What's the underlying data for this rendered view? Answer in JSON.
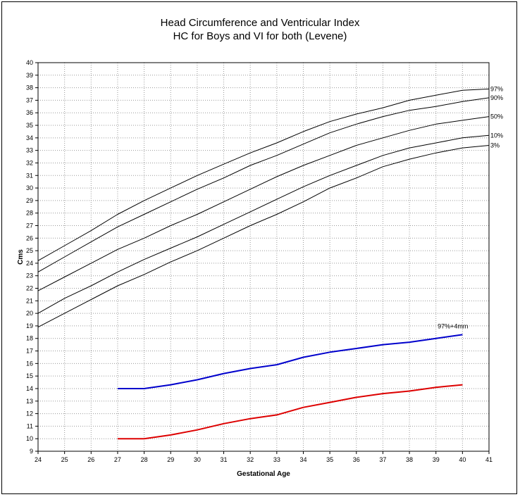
{
  "chart_data": {
    "type": "line",
    "title": "Head Circumference and Ventricular Index",
    "subtitle": "HC for Boys and VI for both (Levene)",
    "xlabel": "Gestational Age",
    "ylabel": "Cms",
    "xlim": [
      24,
      41
    ],
    "ylim": [
      9,
      40
    ],
    "x_ticks": [
      "24",
      "25",
      "26",
      "27",
      "28",
      "29",
      "30",
      "31",
      "32",
      "33",
      "34",
      "35",
      "36",
      "37",
      "38",
      "39",
      "40",
      "41"
    ],
    "y_ticks": [
      "9",
      "10",
      "11",
      "12",
      "13",
      "14",
      "15",
      "16",
      "17",
      "18",
      "19",
      "20",
      "21",
      "22",
      "23",
      "24",
      "25",
      "26",
      "27",
      "28",
      "29",
      "30",
      "31",
      "32",
      "33",
      "34",
      "35",
      "36",
      "37",
      "38",
      "39",
      "40"
    ],
    "grid": true,
    "legend": "inline labels at line ends",
    "series": [
      {
        "name": "97%",
        "color": "#000000",
        "x": [
          24,
          25,
          26,
          27,
          28,
          29,
          30,
          31,
          32,
          33,
          34,
          35,
          36,
          37,
          38,
          39,
          40,
          41
        ],
        "y": [
          24.2,
          25.4,
          26.6,
          27.9,
          29.0,
          30.0,
          31.0,
          31.9,
          32.8,
          33.6,
          34.5,
          35.3,
          35.9,
          36.4,
          37.0,
          37.4,
          37.8,
          37.9
        ]
      },
      {
        "name": "90%",
        "color": "#000000",
        "x": [
          24,
          25,
          26,
          27,
          28,
          29,
          30,
          31,
          32,
          33,
          34,
          35,
          36,
          37,
          38,
          39,
          40,
          41
        ],
        "y": [
          23.3,
          24.5,
          25.7,
          26.9,
          27.9,
          28.9,
          29.9,
          30.8,
          31.8,
          32.6,
          33.5,
          34.4,
          35.1,
          35.7,
          36.2,
          36.5,
          36.9,
          37.2
        ]
      },
      {
        "name": "50%",
        "color": "#000000",
        "x": [
          24,
          25,
          26,
          27,
          28,
          29,
          30,
          31,
          32,
          33,
          34,
          35,
          36,
          37,
          38,
          39,
          40,
          41
        ],
        "y": [
          21.8,
          22.9,
          24.0,
          25.1,
          26.0,
          27.0,
          27.9,
          28.9,
          29.9,
          30.9,
          31.8,
          32.6,
          33.4,
          34.0,
          34.6,
          35.1,
          35.4,
          35.7
        ]
      },
      {
        "name": "10%",
        "color": "#000000",
        "x": [
          24,
          25,
          26,
          27,
          28,
          29,
          30,
          31,
          32,
          33,
          34,
          35,
          36,
          37,
          38,
          39,
          40,
          41
        ],
        "y": [
          20.0,
          21.2,
          22.2,
          23.3,
          24.3,
          25.2,
          26.1,
          27.1,
          28.1,
          29.1,
          30.1,
          31.0,
          31.8,
          32.6,
          33.2,
          33.6,
          34.0,
          34.2
        ]
      },
      {
        "name": "3%",
        "color": "#000000",
        "x": [
          24,
          25,
          26,
          27,
          28,
          29,
          30,
          31,
          32,
          33,
          34,
          35,
          36,
          37,
          38,
          39,
          40,
          41
        ],
        "y": [
          18.9,
          20.0,
          21.1,
          22.2,
          23.1,
          24.1,
          25.0,
          26.0,
          27.0,
          27.9,
          28.9,
          30.0,
          30.8,
          31.7,
          32.3,
          32.8,
          33.2,
          33.4
        ]
      },
      {
        "name": "97%+4mm",
        "color": "#0000cc",
        "x": [
          27,
          28,
          29,
          30,
          31,
          32,
          33,
          34,
          35,
          36,
          37,
          38,
          39,
          40
        ],
        "y": [
          14.0,
          14.0,
          14.3,
          14.7,
          15.2,
          15.6,
          15.9,
          16.5,
          16.9,
          17.2,
          17.5,
          17.7,
          18.0,
          18.3
        ]
      },
      {
        "name": "",
        "color": "#dd0000",
        "x": [
          27,
          28,
          29,
          30,
          31,
          32,
          33,
          34,
          35,
          36,
          37,
          38,
          39,
          40
        ],
        "y": [
          10.0,
          10.0,
          10.3,
          10.7,
          11.2,
          11.6,
          11.9,
          12.5,
          12.9,
          13.3,
          13.6,
          13.8,
          14.1,
          14.3
        ]
      }
    ]
  }
}
